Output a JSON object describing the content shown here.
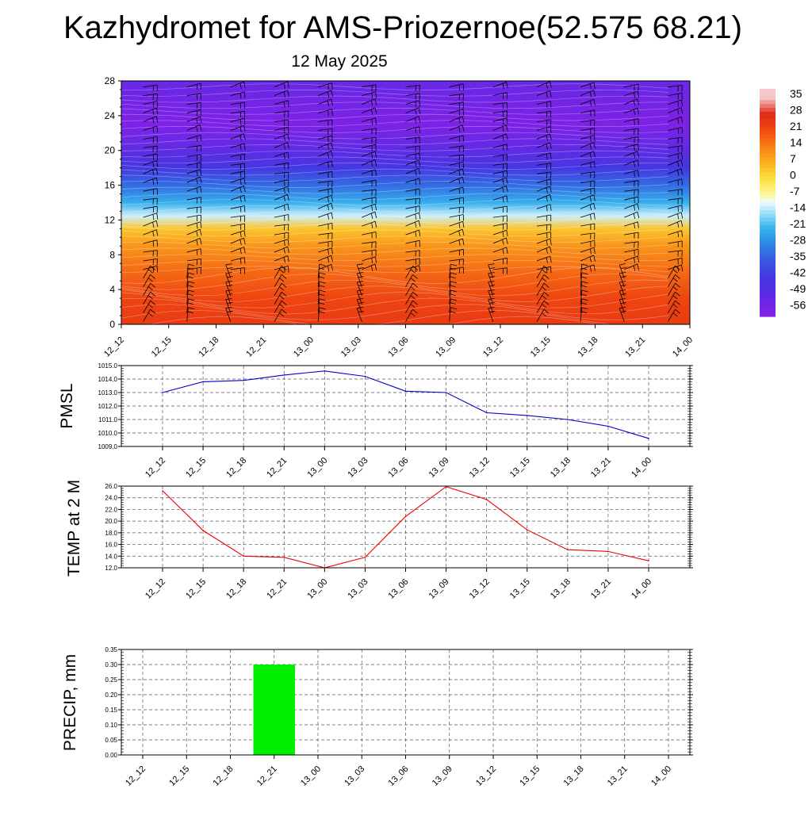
{
  "title": "Kazhydromet for AMS-Priozernoe(52.575 68.21)",
  "subtitle": "12 May 2025",
  "colorbar": {
    "labels": [
      "35",
      "28",
      "21",
      "14",
      "7",
      "0",
      "-7",
      "-14",
      "-21",
      "-28",
      "-35",
      "-42",
      "-49",
      "-56"
    ],
    "colors": [
      "#f4cccc",
      "#ea6a6a",
      "#e02020",
      "#f03a10",
      "#f5701a",
      "#f9a020",
      "#fde060",
      "#d8f0ff",
      "#5cc8f0",
      "#2196e0",
      "#3f6fe0",
      "#4a3fe0",
      "#5a28e0",
      "#8a28e0"
    ]
  },
  "chart_data": [
    {
      "type": "heatmap",
      "name": "vertical-temperature-profile",
      "x": [
        "12_12",
        "12_15",
        "12_18",
        "12_21",
        "13_00",
        "13_03",
        "13_06",
        "13_09",
        "13_12",
        "13_15",
        "13_18",
        "13_21",
        "14_00"
      ],
      "y_ticks": [
        0,
        4,
        8,
        12,
        16,
        20,
        24,
        28
      ],
      "ylim": [
        0,
        28
      ],
      "layers": [
        {
          "y": 0,
          "value": 24
        },
        {
          "y": 3,
          "value": 22
        },
        {
          "y": 6,
          "value": 17
        },
        {
          "y": 9,
          "value": 11
        },
        {
          "y": 11,
          "value": 4
        },
        {
          "y": 12.5,
          "value": -12
        },
        {
          "y": 14,
          "value": -22
        },
        {
          "y": 16,
          "value": -32
        },
        {
          "y": 18,
          "value": -42
        },
        {
          "y": 20,
          "value": -50
        },
        {
          "y": 23,
          "value": -57
        },
        {
          "y": 26,
          "value": -54
        },
        {
          "y": 28,
          "value": -52
        }
      ],
      "wind_barbs": true
    },
    {
      "type": "line",
      "name": "pmsl",
      "ylabel": "PMSL",
      "x": [
        "12_12",
        "12_15",
        "12_18",
        "12_21",
        "13_00",
        "13_03",
        "13_06",
        "13_09",
        "13_12",
        "13_15",
        "13_18",
        "13_21",
        "14_00"
      ],
      "values": [
        1013.0,
        1013.8,
        1013.9,
        1014.3,
        1014.6,
        1014.2,
        1013.1,
        1013.0,
        1011.5,
        1011.3,
        1011.0,
        1010.5,
        1009.6
      ],
      "ylim": [
        1009.0,
        1015.0
      ],
      "y_ticks": [
        "1009.0",
        "1010.0",
        "1011.0",
        "1012.0",
        "1013.0",
        "1014.0",
        "1015.0"
      ],
      "color": "#0000cc"
    },
    {
      "type": "line",
      "name": "temp-2m",
      "ylabel": "TEMP at 2 M",
      "x": [
        "12_12",
        "12_15",
        "12_18",
        "12_21",
        "13_00",
        "13_03",
        "13_06",
        "13_09",
        "13_12",
        "13_15",
        "13_18",
        "13_21",
        "14_00"
      ],
      "values": [
        25.2,
        18.4,
        14.0,
        13.8,
        12.0,
        13.8,
        20.8,
        25.9,
        23.7,
        18.5,
        15.1,
        14.8,
        13.2
      ],
      "ylim": [
        12.0,
        26.0
      ],
      "y_ticks": [
        "12.0",
        "14.0",
        "16.0",
        "18.0",
        "20.0",
        "22.0",
        "24.0",
        "26.0"
      ],
      "color": "#ee0000"
    },
    {
      "type": "bar",
      "name": "precip",
      "ylabel": "PRECIP, mm",
      "categories": [
        "12_12",
        "12_15",
        "12_18",
        "12_21",
        "13_00",
        "13_03",
        "13_06",
        "13_09",
        "13_12",
        "13_15",
        "13_18",
        "13_21",
        "14_00"
      ],
      "values": [
        0,
        0,
        0,
        0.3,
        0,
        0,
        0,
        0,
        0,
        0,
        0,
        0,
        0
      ],
      "ylim": [
        0,
        0.35
      ],
      "y_ticks": [
        "0.00",
        "0.05",
        "0.10",
        "0.15",
        "0.20",
        "0.25",
        "0.30",
        "0.35"
      ],
      "color": "#00ee00"
    }
  ]
}
